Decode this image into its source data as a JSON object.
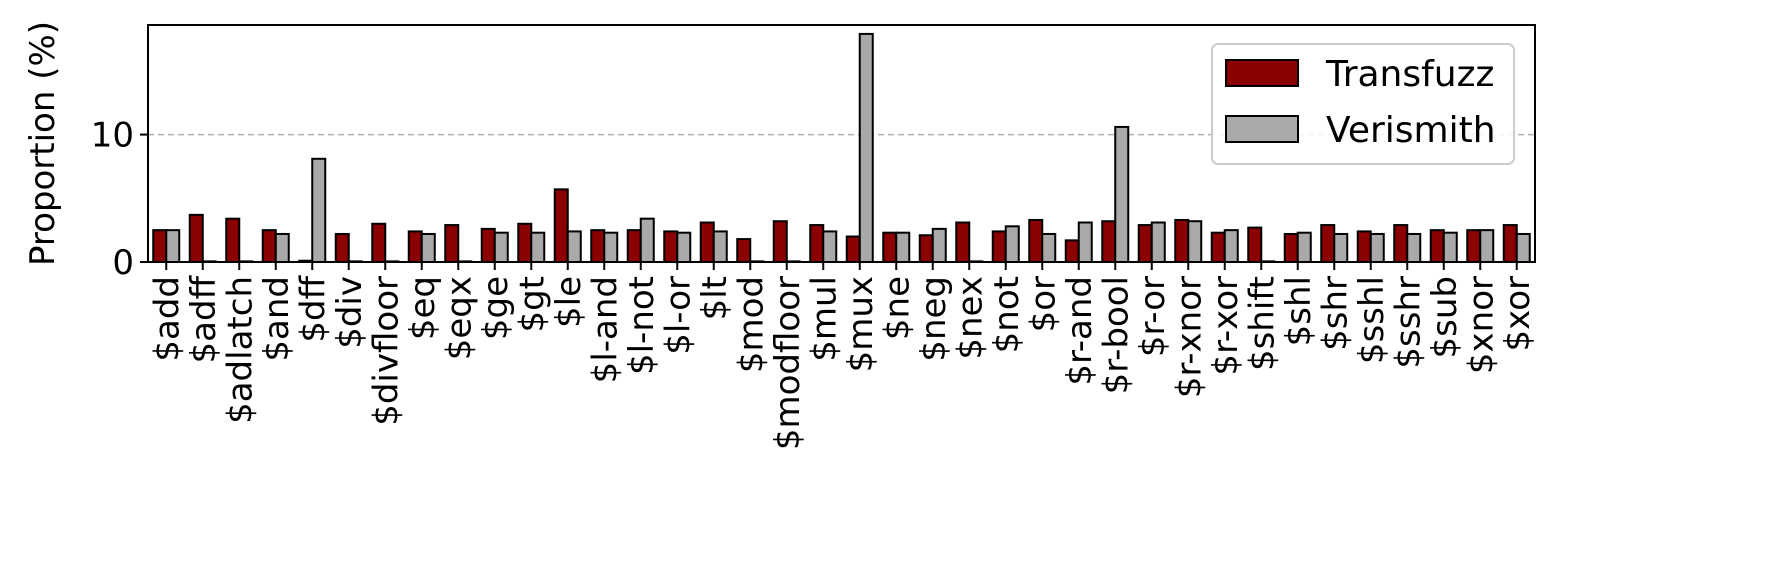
{
  "chart_data": {
    "type": "bar",
    "ylabel": "Proportion (%)",
    "xlabel": "",
    "ylim": [
      0,
      18.6
    ],
    "yticks": [
      0,
      10
    ],
    "grid": "horizontal dashed at 10",
    "legend_position": "top-right",
    "categories": [
      "$add",
      "$adff",
      "$adlatch",
      "$and",
      "$dff",
      "$div",
      "$divfloor",
      "$eq",
      "$eqx",
      "$ge",
      "$gt",
      "$le",
      "$l-and",
      "$l-not",
      "$l-or",
      "$lt",
      "$mod",
      "$modfloor",
      "$mul",
      "$mux",
      "$ne",
      "$neg",
      "$nex",
      "$not",
      "$or",
      "$r-and",
      "$r-bool",
      "$r-or",
      "$r-xnor",
      "$r-xor",
      "$shift",
      "$shl",
      "$shr",
      "$sshl",
      "$sshr",
      "$sub",
      "$xnor",
      "$xor"
    ],
    "series": [
      {
        "name": "Transfuzz",
        "color": "#8b0000",
        "values": [
          2.5,
          3.7,
          3.4,
          2.5,
          0.1,
          2.2,
          3.0,
          2.4,
          2.9,
          2.6,
          3.0,
          5.7,
          2.5,
          2.5,
          2.4,
          3.1,
          1.8,
          3.2,
          2.9,
          2.0,
          2.3,
          2.1,
          3.1,
          2.4,
          3.3,
          1.7,
          3.2,
          2.9,
          3.3,
          2.3,
          2.7,
          2.2,
          2.9,
          2.4,
          2.9,
          2.5,
          2.5,
          2.9
        ]
      },
      {
        "name": "Verismith",
        "color": "#a9a9a9",
        "values": [
          2.5,
          0.05,
          0.05,
          2.2,
          8.1,
          0.05,
          0.05,
          2.2,
          0.05,
          2.3,
          2.3,
          2.4,
          2.3,
          3.4,
          2.3,
          2.4,
          0.05,
          0.05,
          2.4,
          17.9,
          2.3,
          2.6,
          0.05,
          2.8,
          2.2,
          3.1,
          10.6,
          3.1,
          3.2,
          2.5,
          0.05,
          2.3,
          2.2,
          2.2,
          2.2,
          2.3,
          2.5,
          2.2
        ]
      }
    ]
  }
}
